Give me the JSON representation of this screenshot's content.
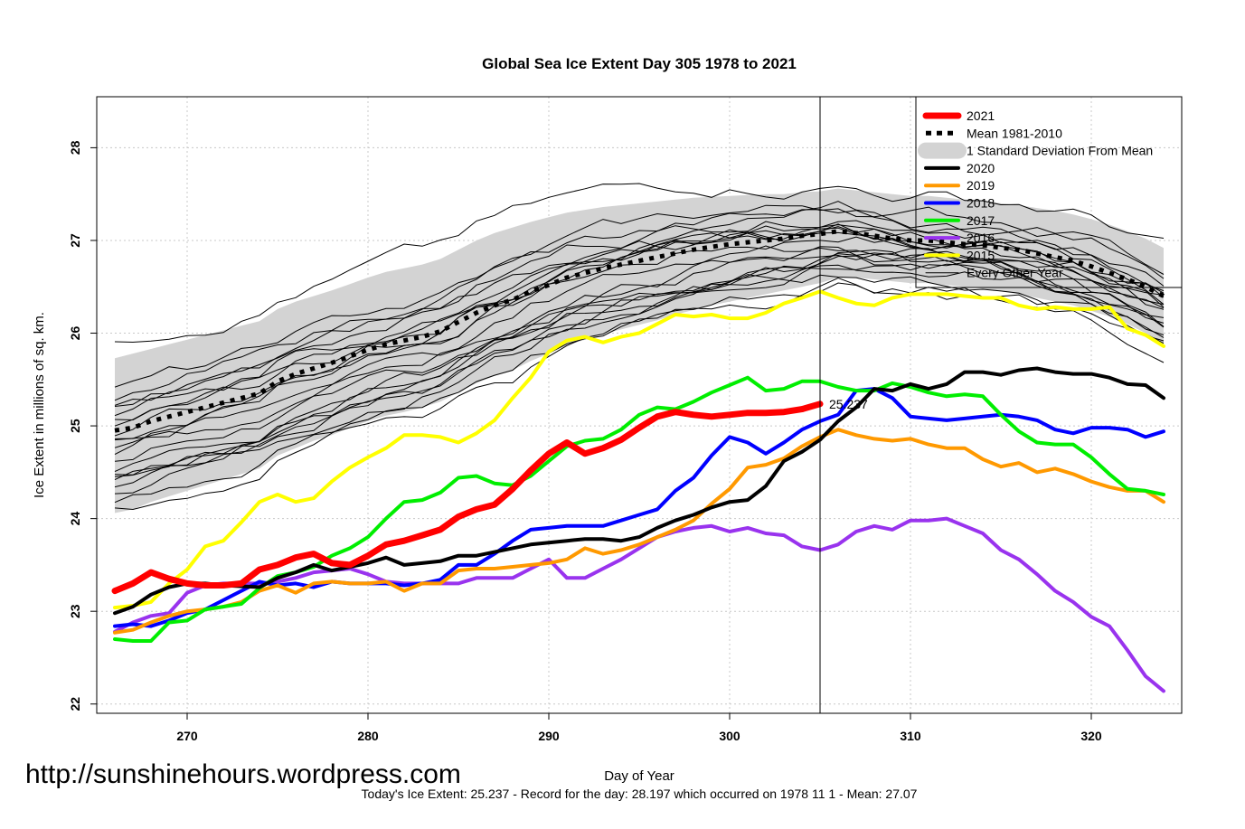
{
  "colors": {
    "y2021": "#ff0000",
    "mean": "#000000",
    "sd": "#d3d3d3",
    "y2020": "#000000",
    "y2019": "#ff9900",
    "y2018": "#0000ff",
    "y2017": "#00ee00",
    "y2016": "#9933ee",
    "y2015": "#ffff00",
    "other": "#000000",
    "today_label": "#ff0000"
  },
  "chart_data": {
    "type": "line",
    "title": "Global Sea Ice Extent Day 305 1978 to 2021",
    "xlabel": "Day of Year",
    "ylabel": "Ice Extent in millions of sq. km.",
    "xlim": [
      265,
      325
    ],
    "ylim": [
      21.9,
      28.55
    ],
    "xticks": [
      "270",
      "280",
      "290",
      "300",
      "310",
      "320"
    ],
    "yticks": [
      "22",
      "23",
      "24",
      "25",
      "26",
      "27",
      "28"
    ],
    "grid": true,
    "legend_position": "top-right",
    "current_day": 305,
    "current_value_label": "25.237",
    "days": [
      266,
      267,
      268,
      269,
      270,
      271,
      272,
      273,
      274,
      275,
      276,
      277,
      278,
      279,
      280,
      281,
      282,
      283,
      284,
      285,
      286,
      287,
      288,
      289,
      290,
      291,
      292,
      293,
      294,
      295,
      296,
      297,
      298,
      299,
      300,
      301,
      302,
      303,
      304,
      305,
      306,
      307,
      308,
      309,
      310,
      311,
      312,
      313,
      314,
      315,
      316,
      317,
      318,
      319,
      320,
      321,
      322,
      323,
      324
    ],
    "series": [
      {
        "name": "2021",
        "color_key": "y2021",
        "width": 7,
        "values": [
          23.22,
          23.3,
          23.42,
          23.35,
          23.3,
          23.28,
          23.28,
          23.3,
          23.45,
          23.5,
          23.58,
          23.62,
          23.52,
          23.5,
          23.6,
          23.72,
          23.76,
          23.82,
          23.88,
          24.02,
          24.1,
          24.15,
          24.32,
          24.52,
          24.7,
          24.82,
          24.7,
          24.76,
          24.85,
          24.98,
          25.1,
          25.15,
          25.12,
          25.1,
          25.12,
          25.14,
          25.14,
          25.15,
          25.18,
          25.237
        ]
      },
      {
        "name": "Mean 1981-2010",
        "color_key": "mean",
        "width": 5,
        "dashed": true,
        "values": [
          24.95,
          24.98,
          25.05,
          25.1,
          25.15,
          25.2,
          25.25,
          25.3,
          25.35,
          25.48,
          25.56,
          25.62,
          25.68,
          25.75,
          25.82,
          25.88,
          25.92,
          25.96,
          26.02,
          26.12,
          26.22,
          26.3,
          26.36,
          26.45,
          26.52,
          26.6,
          26.65,
          26.7,
          26.74,
          26.78,
          26.82,
          26.86,
          26.9,
          26.93,
          26.96,
          26.98,
          27.0,
          27.02,
          27.05,
          27.07,
          27.1,
          27.08,
          27.05,
          27.02,
          27.0,
          27.0,
          26.98,
          26.96,
          26.95,
          26.92,
          26.9,
          26.86,
          26.82,
          26.78,
          26.72,
          26.65,
          26.58,
          26.5,
          26.4
        ]
      },
      {
        "name": "1 Standard Deviation From Mean",
        "color_key": "sd",
        "band": true,
        "upper": [
          25.73,
          25.78,
          25.83,
          25.88,
          25.93,
          25.98,
          26.03,
          26.08,
          26.13,
          26.26,
          26.34,
          26.4,
          26.46,
          26.53,
          26.6,
          26.66,
          26.7,
          26.74,
          26.8,
          26.9,
          27.0,
          27.08,
          27.14,
          27.2,
          27.25,
          27.3,
          27.33,
          27.36,
          27.38,
          27.4,
          27.42,
          27.44,
          27.46,
          27.47,
          27.48,
          27.49,
          27.5,
          27.5,
          27.52,
          27.53,
          27.56,
          27.54,
          27.52,
          27.5,
          27.48,
          27.48,
          27.46,
          27.44,
          27.43,
          27.4,
          27.38,
          27.35,
          27.32,
          27.28,
          27.23,
          27.17,
          27.1,
          27.02,
          26.92
        ],
        "lower": [
          24.06,
          24.1,
          24.18,
          24.24,
          24.3,
          24.36,
          24.42,
          24.48,
          24.54,
          24.68,
          24.76,
          24.84,
          24.9,
          24.98,
          25.05,
          25.11,
          25.15,
          25.2,
          25.26,
          25.36,
          25.46,
          25.54,
          25.6,
          25.7,
          25.78,
          25.87,
          25.93,
          25.99,
          26.04,
          26.09,
          26.14,
          26.2,
          26.25,
          26.3,
          26.34,
          26.38,
          26.42,
          26.46,
          26.5,
          26.54,
          26.6,
          26.6,
          26.58,
          26.56,
          26.54,
          26.54,
          26.52,
          26.5,
          26.48,
          26.45,
          26.42,
          26.38,
          26.34,
          26.3,
          26.24,
          26.18,
          26.1,
          26.0,
          25.88
        ]
      },
      {
        "name": "2020",
        "color_key": "y2020",
        "width": 4,
        "values": [
          22.98,
          23.05,
          23.18,
          23.26,
          23.3,
          23.3,
          23.28,
          23.27,
          23.26,
          23.36,
          23.42,
          23.5,
          23.44,
          23.48,
          23.52,
          23.58,
          23.5,
          23.52,
          23.54,
          23.6,
          23.6,
          23.64,
          23.68,
          23.72,
          23.74,
          23.76,
          23.78,
          23.78,
          23.76,
          23.8,
          23.9,
          23.98,
          24.04,
          24.12,
          24.18,
          24.2,
          24.35,
          24.62,
          24.72,
          24.85,
          25.05,
          25.2,
          25.4,
          25.38,
          25.45,
          25.4,
          25.45,
          25.58,
          25.58,
          25.55,
          25.6,
          25.62,
          25.58,
          25.56,
          25.56,
          25.52,
          25.45,
          25.44,
          25.3
        ]
      },
      {
        "name": "2019",
        "color_key": "y2019",
        "width": 4,
        "values": [
          22.77,
          22.8,
          22.88,
          22.95,
          23.0,
          23.02,
          23.05,
          23.1,
          23.22,
          23.28,
          23.2,
          23.3,
          23.32,
          23.3,
          23.3,
          23.32,
          23.22,
          23.3,
          23.3,
          23.44,
          23.46,
          23.46,
          23.48,
          23.5,
          23.52,
          23.56,
          23.68,
          23.62,
          23.66,
          23.72,
          23.8,
          23.88,
          23.98,
          24.16,
          24.32,
          24.55,
          24.58,
          24.65,
          24.78,
          24.88,
          24.96,
          24.9,
          24.86,
          24.84,
          24.86,
          24.8,
          24.76,
          24.76,
          24.64,
          24.56,
          24.6,
          24.5,
          24.54,
          24.48,
          24.4,
          24.34,
          24.3,
          24.3,
          24.18
        ]
      },
      {
        "name": "2018",
        "color_key": "y2018",
        "width": 4,
        "values": [
          22.84,
          22.86,
          22.84,
          22.9,
          22.98,
          23.02,
          23.12,
          23.22,
          23.32,
          23.28,
          23.3,
          23.26,
          23.32,
          23.3,
          23.3,
          23.3,
          23.28,
          23.3,
          23.34,
          23.5,
          23.5,
          23.62,
          23.76,
          23.88,
          23.9,
          23.92,
          23.92,
          23.92,
          23.98,
          24.04,
          24.1,
          24.3,
          24.44,
          24.68,
          24.88,
          24.82,
          24.7,
          24.82,
          24.96,
          25.05,
          25.12,
          25.38,
          25.4,
          25.3,
          25.1,
          25.08,
          25.06,
          25.08,
          25.1,
          25.12,
          25.1,
          25.06,
          24.96,
          24.92,
          24.98,
          24.98,
          24.96,
          24.88,
          24.94
        ]
      },
      {
        "name": "2017",
        "color_key": "y2017",
        "width": 4,
        "values": [
          22.7,
          22.68,
          22.68,
          22.88,
          22.9,
          23.02,
          23.05,
          23.08,
          23.25,
          23.38,
          23.42,
          23.48,
          23.6,
          23.68,
          23.8,
          24.0,
          24.18,
          24.2,
          24.28,
          24.44,
          24.46,
          24.38,
          24.36,
          24.46,
          24.62,
          24.78,
          24.84,
          24.86,
          24.96,
          25.12,
          25.2,
          25.18,
          25.26,
          25.36,
          25.44,
          25.52,
          25.38,
          25.4,
          25.48,
          25.48,
          25.42,
          25.38,
          25.38,
          25.46,
          25.42,
          25.36,
          25.32,
          25.34,
          25.32,
          25.12,
          24.94,
          24.82,
          24.8,
          24.8,
          24.66,
          24.48,
          24.32,
          24.3,
          24.26
        ]
      },
      {
        "name": "2016",
        "color_key": "y2016",
        "width": 4,
        "values": [
          22.78,
          22.88,
          22.95,
          22.98,
          23.2,
          23.28,
          23.3,
          23.3,
          23.3,
          23.32,
          23.36,
          23.42,
          23.44,
          23.46,
          23.4,
          23.32,
          23.3,
          23.3,
          23.3,
          23.3,
          23.36,
          23.36,
          23.36,
          23.46,
          23.56,
          23.36,
          23.36,
          23.46,
          23.56,
          23.68,
          23.8,
          23.86,
          23.9,
          23.92,
          23.86,
          23.9,
          23.84,
          23.82,
          23.7,
          23.66,
          23.72,
          23.86,
          23.92,
          23.88,
          23.98,
          23.98,
          24.0,
          23.92,
          23.84,
          23.66,
          23.56,
          23.4,
          23.22,
          23.1,
          22.94,
          22.84,
          22.58,
          22.3,
          22.14
        ]
      },
      {
        "name": "2015",
        "color_key": "y2015",
        "width": 4,
        "values": [
          23.04,
          23.06,
          23.1,
          23.3,
          23.45,
          23.7,
          23.76,
          23.96,
          24.18,
          24.26,
          24.18,
          24.22,
          24.4,
          24.55,
          24.66,
          24.76,
          24.9,
          24.9,
          24.88,
          24.82,
          24.92,
          25.06,
          25.3,
          25.52,
          25.8,
          25.92,
          25.96,
          25.9,
          25.96,
          26.0,
          26.1,
          26.2,
          26.18,
          26.2,
          26.16,
          26.16,
          26.22,
          26.32,
          26.38,
          26.45,
          26.38,
          26.32,
          26.3,
          26.38,
          26.42,
          26.42,
          26.42,
          26.4,
          26.38,
          26.38,
          26.3,
          26.26,
          26.28,
          26.26,
          26.26,
          26.28,
          26.05,
          25.98,
          25.86
        ]
      },
      {
        "name": "Every Other Year",
        "color_key": "other",
        "width": 1
      }
    ]
  },
  "footer": {
    "summary": "Today's Ice Extent: 25.237  - Record for the day: 28.197 which occurred on 1978 11 1  - Mean: 27.07",
    "url": "http://sunshinehours.wordpress.com"
  }
}
